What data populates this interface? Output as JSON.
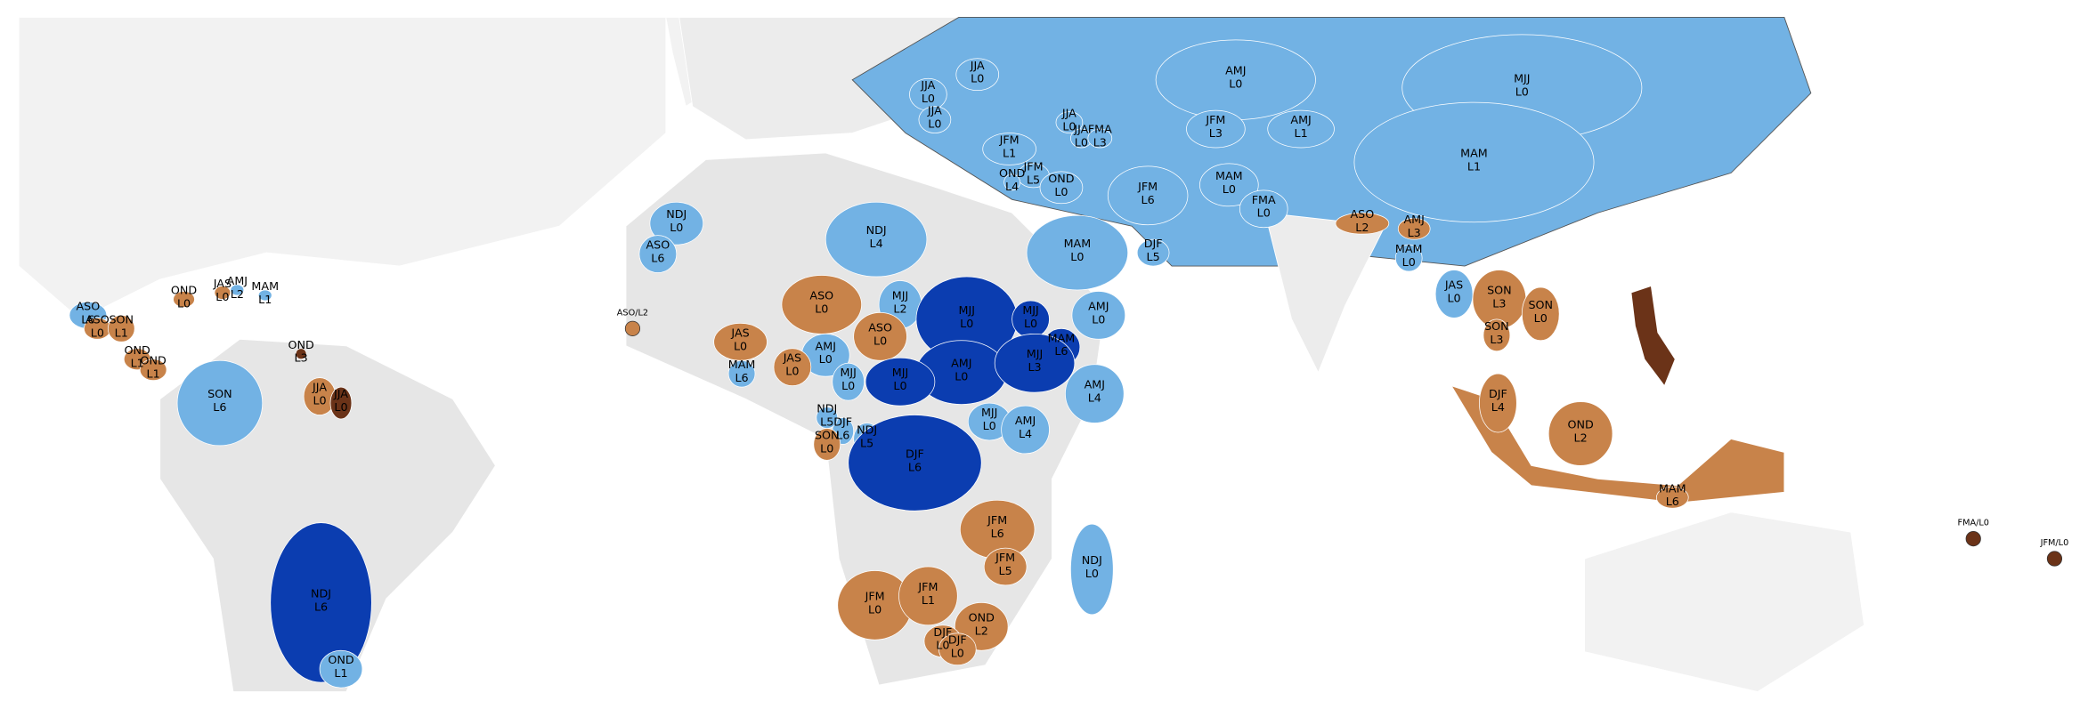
{
  "regions": [
    {
      "season": "JJA",
      "lead": "L0",
      "color": "#72b2e4"
    },
    {
      "season": "JJA",
      "lead": "L0",
      "color": "#72b2e4"
    },
    {
      "season": "JJA",
      "lead": "L0",
      "color": "#72b2e4"
    },
    {
      "season": "AMJ",
      "lead": "L0",
      "color": "#72b2e4"
    },
    {
      "season": "MJJ",
      "lead": "L0",
      "color": "#72b2e4"
    },
    {
      "season": "JJA",
      "lead": "L0",
      "color": "#72b2e4"
    },
    {
      "season": "JJA",
      "lead": "L0",
      "color": "#72b2e4"
    },
    {
      "season": "FMA",
      "lead": "L3",
      "color": "#72b2e4"
    },
    {
      "season": "JFM",
      "lead": "L3",
      "color": "#72b2e4"
    },
    {
      "season": "AMJ",
      "lead": "L1",
      "color": "#72b2e4"
    },
    {
      "season": "JFM",
      "lead": "L1",
      "color": "#72b2e4"
    },
    {
      "season": "MAM",
      "lead": "L1",
      "color": "#72b2e4"
    },
    {
      "season": "JFM",
      "lead": "L5",
      "color": "#72b2e4"
    },
    {
      "season": "OND",
      "lead": "L0",
      "color": "#72b2e4"
    },
    {
      "season": "OND",
      "lead": "L4",
      "color": "#72b2e4"
    },
    {
      "season": "JFM",
      "lead": "L6",
      "color": "#72b2e4"
    },
    {
      "season": "MAM",
      "lead": "L0",
      "color": "#72b2e4"
    },
    {
      "season": "FMA",
      "lead": "L0",
      "color": "#72b2e4"
    },
    {
      "season": "NDJ",
      "lead": "L0",
      "color": "#72b2e4"
    },
    {
      "season": "NDJ",
      "lead": "L4",
      "color": "#72b2e4"
    },
    {
      "season": "ASO",
      "lead": "L2",
      "color": "#c8834a"
    },
    {
      "season": "AMJ",
      "lead": "L3",
      "color": "#c8834a"
    },
    {
      "season": "MAM",
      "lead": "L0",
      "color": "#72b2e4"
    },
    {
      "season": "DJF",
      "lead": "L5",
      "color": "#72b2e4"
    },
    {
      "season": "MAM",
      "lead": "L0",
      "color": "#72b2e4"
    },
    {
      "season": "ASO",
      "lead": "L6",
      "color": "#72b2e4"
    },
    {
      "season": "JAS",
      "lead": "L0",
      "color": "#72b2e4"
    },
    {
      "season": "SON",
      "lead": "L3",
      "color": "#c8834a"
    },
    {
      "season": "SON",
      "lead": "L0",
      "color": "#c8834a"
    },
    {
      "season": "ASO",
      "lead": "L0",
      "color": "#c8834a"
    },
    {
      "season": "MJJ",
      "lead": "L2",
      "color": "#72b2e4"
    },
    {
      "season": "MJJ",
      "lead": "L0",
      "color": "#0b3db0"
    },
    {
      "season": "MJJ",
      "lead": "L0",
      "color": "#0b3db0"
    },
    {
      "season": "AMJ",
      "lead": "L0",
      "color": "#72b2e4"
    },
    {
      "season": "ASO",
      "lead": "L0",
      "color": "#c8834a"
    },
    {
      "season": "MAM",
      "lead": "L6",
      "color": "#0b3db0"
    },
    {
      "season": "JAS",
      "lead": "L0",
      "color": "#c8834a"
    },
    {
      "season": "AMJ",
      "lead": "L0",
      "color": "#72b2e4"
    },
    {
      "season": "AMJ",
      "lead": "L0",
      "color": "#0b3db0"
    },
    {
      "season": "MJJ",
      "lead": "L3",
      "color": "#0b3db0"
    },
    {
      "season": "SON",
      "lead": "L3",
      "color": "#c8834a"
    },
    {
      "season": "JAS",
      "lead": "L0",
      "color": "#c8834a"
    },
    {
      "season": "MAM",
      "lead": "L6",
      "color": "#72b2e4"
    },
    {
      "season": "MJJ",
      "lead": "L0",
      "color": "#0b3db0"
    },
    {
      "season": "MJJ",
      "lead": "L0",
      "color": "#72b2e4"
    },
    {
      "season": "AMJ",
      "lead": "L4",
      "color": "#72b2e4"
    },
    {
      "season": "DJF",
      "lead": "L4",
      "color": "#c8834a"
    },
    {
      "season": "NDJ",
      "lead": "L5",
      "color": "#72b2e4"
    },
    {
      "season": "DJF",
      "lead": "L6",
      "color": "#72b2e4"
    },
    {
      "season": "NDJ",
      "lead": "L5",
      "color": "#72b2e4"
    },
    {
      "season": "SON",
      "lead": "L0",
      "color": "#c8834a"
    },
    {
      "season": "MJJ",
      "lead": "L0",
      "color": "#72b2e4"
    },
    {
      "season": "AMJ",
      "lead": "L4",
      "color": "#72b2e4"
    },
    {
      "season": "OND",
      "lead": "L2",
      "color": "#c8834a"
    },
    {
      "season": "DJF",
      "lead": "L6",
      "color": "#0b3db0"
    },
    {
      "season": "MAM",
      "lead": "L6",
      "color": "#c8834a"
    },
    {
      "season": "JFM",
      "lead": "L6",
      "color": "#c8834a"
    },
    {
      "season": "JFM",
      "lead": "L5",
      "color": "#c8834a"
    },
    {
      "season": "NDJ",
      "lead": "L0",
      "color": "#72b2e4"
    },
    {
      "season": "JFM",
      "lead": "L0",
      "color": "#c8834a"
    },
    {
      "season": "JFM",
      "lead": "L1",
      "color": "#c8834a"
    },
    {
      "season": "OND",
      "lead": "L2",
      "color": "#c8834a"
    },
    {
      "season": "DJF",
      "lead": "L0",
      "color": "#c8834a"
    },
    {
      "season": "DJF",
      "lead": "L0",
      "color": "#c8834a"
    },
    {
      "season": "NDJ",
      "lead": "L6",
      "color": "#0b3db0"
    },
    {
      "season": "OND",
      "lead": "L1",
      "color": "#72b2e4"
    },
    {
      "season": "SON",
      "lead": "L6",
      "color": "#72b2e4"
    },
    {
      "season": "JJA",
      "lead": "L0",
      "color": "#c8834a"
    },
    {
      "season": "JJA",
      "lead": "L0",
      "color": "#6b3318"
    },
    {
      "season": "OND",
      "lead": "L3",
      "color": "#6b3318"
    },
    {
      "season": "ASO",
      "lead": "L6",
      "color": "#72b2e4"
    },
    {
      "season": "ASO",
      "lead": "L0",
      "color": "#c8834a"
    },
    {
      "season": "SON",
      "lead": "L1",
      "color": "#c8834a"
    },
    {
      "season": "OND",
      "lead": "L1",
      "color": "#c8834a"
    },
    {
      "season": "OND",
      "lead": "L1",
      "color": "#c8834a"
    },
    {
      "season": "OND",
      "lead": "L0",
      "color": "#c8834a"
    },
    {
      "season": "JAS",
      "lead": "L0",
      "color": "#c8834a"
    },
    {
      "season": "AMJ",
      "lead": "L2",
      "color": "#72b2e4"
    },
    {
      "season": "MAM",
      "lead": "L1",
      "color": "#72b2e4"
    }
  ],
  "point_labels": [
    {
      "label": "FMA/L0",
      "color": "#6b3318"
    },
    {
      "label": "JFM/L0",
      "color": "#6b3318"
    },
    {
      "label": "ASO/L2",
      "color": "#c8834a"
    }
  ]
}
